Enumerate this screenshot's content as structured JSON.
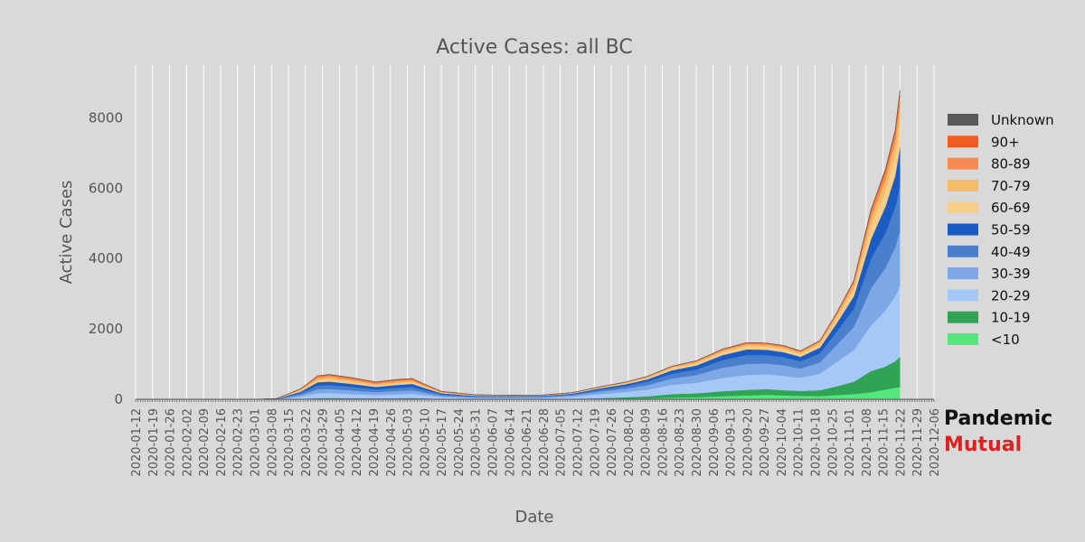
{
  "chart_data": {
    "type": "area",
    "stacked": true,
    "title": "Active Cases: all BC",
    "xlabel": "Date",
    "ylabel": "Active Cases",
    "ylim": [
      0,
      9500
    ],
    "yticks": [
      0,
      2000,
      4000,
      6000,
      8000
    ],
    "xrange": [
      "2020-01-12",
      "2020-12-06"
    ],
    "xtick_labels": [
      "2020-01-12",
      "2020-01-19",
      "2020-01-26",
      "2020-02-02",
      "2020-02-09",
      "2020-02-16",
      "2020-02-23",
      "2020-03-01",
      "2020-03-08",
      "2020-03-15",
      "2020-03-22",
      "2020-03-29",
      "2020-04-05",
      "2020-04-12",
      "2020-04-19",
      "2020-04-26",
      "2020-05-03",
      "2020-05-10",
      "2020-05-17",
      "2020-05-24",
      "2020-05-31",
      "2020-06-07",
      "2020-06-14",
      "2020-06-21",
      "2020-06-28",
      "2020-07-05",
      "2020-07-12",
      "2020-07-19",
      "2020-07-26",
      "2020-08-02",
      "2020-08-09",
      "2020-08-16",
      "2020-08-23",
      "2020-08-30",
      "2020-09-06",
      "2020-09-13",
      "2020-09-20",
      "2020-09-27",
      "2020-10-04",
      "2020-10-11",
      "2020-10-18",
      "2020-10-25",
      "2020-11-01",
      "2020-11-08",
      "2020-11-15",
      "2020-11-22",
      "2020-11-29",
      "2020-12-06"
    ],
    "grid": true,
    "legend_position": "right",
    "x": [
      "2020-03-01",
      "2020-03-10",
      "2020-03-20",
      "2020-03-27",
      "2020-04-01",
      "2020-04-10",
      "2020-04-20",
      "2020-04-28",
      "2020-05-05",
      "2020-05-10",
      "2020-05-17",
      "2020-05-31",
      "2020-06-14",
      "2020-06-28",
      "2020-07-10",
      "2020-07-20",
      "2020-08-01",
      "2020-08-10",
      "2020-08-20",
      "2020-08-30",
      "2020-09-10",
      "2020-09-20",
      "2020-09-28",
      "2020-10-05",
      "2020-10-12",
      "2020-10-20",
      "2020-10-27",
      "2020-11-03",
      "2020-11-10",
      "2020-11-16",
      "2020-11-20",
      "2020-11-22"
    ],
    "series": [
      {
        "name": "<10",
        "color": "#57e67e",
        "values": [
          0,
          0,
          6,
          12,
          14,
          12,
          10,
          11,
          14,
          11,
          6,
          3,
          2,
          2,
          4,
          8,
          18,
          25,
          50,
          60,
          90,
          110,
          130,
          110,
          100,
          90,
          120,
          150,
          200,
          280,
          330,
          350
        ]
      },
      {
        "name": "10-19",
        "color": "#31a354",
        "values": [
          0,
          1,
          10,
          22,
          24,
          22,
          18,
          20,
          24,
          18,
          10,
          5,
          5,
          5,
          10,
          22,
          40,
          60,
          100,
          110,
          140,
          160,
          160,
          150,
          140,
          170,
          250,
          350,
          600,
          650,
          750,
          860
        ]
      },
      {
        "name": "20-29",
        "color": "#a6c8f7",
        "values": [
          0,
          5,
          60,
          140,
          140,
          120,
          95,
          110,
          120,
          90,
          50,
          30,
          30,
          35,
          60,
          110,
          150,
          190,
          260,
          300,
          380,
          420,
          420,
          410,
          370,
          470,
          700,
          900,
          1300,
          1600,
          1850,
          2020
        ]
      },
      {
        "name": "30-39",
        "color": "#7ea7e6",
        "values": [
          0,
          4,
          50,
          110,
          115,
          100,
          80,
          95,
          100,
          75,
          40,
          25,
          25,
          25,
          40,
          70,
          100,
          130,
          180,
          220,
          290,
          320,
          310,
          300,
          260,
          320,
          480,
          660,
          1050,
          1200,
          1400,
          1550
        ]
      },
      {
        "name": "40-49",
        "color": "#4a7fcc",
        "values": [
          0,
          4,
          50,
          110,
          115,
          100,
          80,
          90,
          95,
          70,
          35,
          20,
          20,
          20,
          30,
          50,
          70,
          100,
          140,
          160,
          220,
          250,
          240,
          230,
          210,
          260,
          380,
          520,
          850,
          1000,
          1150,
          1300
        ]
      },
      {
        "name": "50-59",
        "color": "#1a5bc4",
        "values": [
          0,
          3,
          40,
          90,
          95,
          85,
          70,
          80,
          85,
          60,
          30,
          17,
          15,
          15,
          20,
          35,
          50,
          65,
          95,
          110,
          140,
          160,
          150,
          140,
          130,
          160,
          240,
          350,
          550,
          750,
          880,
          1100
        ]
      },
      {
        "name": "60-69",
        "color": "#f7cd8a",
        "values": [
          0,
          2,
          30,
          65,
          70,
          60,
          45,
          50,
          50,
          35,
          18,
          10,
          8,
          8,
          12,
          20,
          30,
          40,
          55,
          65,
          80,
          90,
          85,
          85,
          75,
          95,
          140,
          210,
          350,
          450,
          560,
          680
        ]
      },
      {
        "name": "70-79",
        "color": "#f5bb66",
        "values": [
          0,
          1,
          25,
          55,
          60,
          50,
          40,
          45,
          45,
          30,
          15,
          8,
          6,
          6,
          8,
          12,
          20,
          25,
          35,
          40,
          50,
          55,
          55,
          55,
          50,
          60,
          90,
          130,
          250,
          320,
          380,
          480
        ]
      },
      {
        "name": "80-89",
        "color": "#f78a50",
        "values": [
          0,
          1,
          20,
          45,
          50,
          45,
          38,
          40,
          40,
          30,
          15,
          8,
          5,
          5,
          5,
          8,
          10,
          15,
          20,
          22,
          30,
          35,
          35,
          35,
          30,
          35,
          55,
          80,
          160,
          200,
          240,
          300
        ]
      },
      {
        "name": "90+",
        "color": "#f25c23",
        "values": [
          0,
          0,
          8,
          18,
          20,
          20,
          17,
          17,
          17,
          12,
          6,
          3,
          2,
          2,
          2,
          2,
          3,
          5,
          6,
          7,
          10,
          12,
          12,
          12,
          10,
          12,
          18,
          30,
          70,
          90,
          110,
          140
        ]
      },
      {
        "name": "Unknown",
        "color": "#595959",
        "values": [
          0,
          0,
          0,
          0,
          0,
          0,
          0,
          0,
          0,
          0,
          0,
          0,
          0,
          0,
          0,
          0,
          0,
          0,
          0,
          0,
          0,
          0,
          0,
          0,
          0,
          0,
          0,
          0,
          0,
          0,
          0,
          0
        ]
      }
    ]
  },
  "legend_items": [
    "Unknown",
    "90+",
    "80-89",
    "70-79",
    "60-69",
    "50-59",
    "40-49",
    "30-39",
    "20-29",
    "10-19",
    "<10"
  ],
  "brand": {
    "line1": "Pandemic",
    "line2": "Mutual",
    "color1": "#111111",
    "color2": "#e02020"
  }
}
